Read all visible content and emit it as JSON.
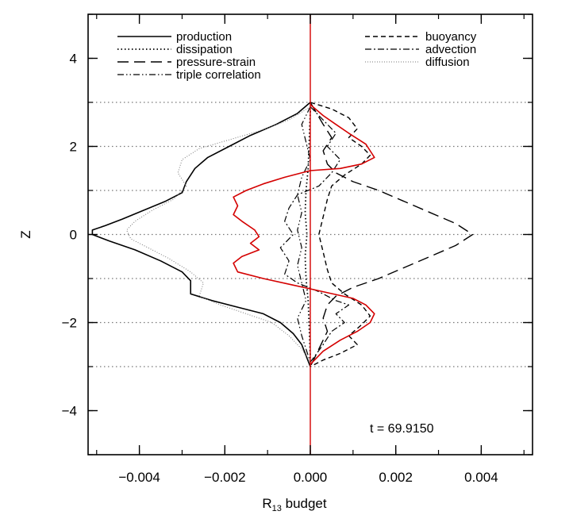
{
  "chart_data": {
    "type": "line",
    "title": "",
    "xlabel": "R",
    "xlabel_sub": "13",
    "xlabel_suffix": " budget",
    "ylabel": "Z",
    "xlim": [
      -0.0052,
      0.0052
    ],
    "ylim": [
      -5,
      5
    ],
    "x_ticks": [
      -0.004,
      -0.002,
      0.0,
      0.002,
      0.004
    ],
    "x_tick_labels": [
      "−0.004",
      "−0.002",
      "0.000",
      "0.002",
      "0.004"
    ],
    "y_ticks": [
      -4,
      -2,
      0,
      2,
      4
    ],
    "y_tick_labels": [
      "−4",
      "−2",
      "0",
      "2",
      "4"
    ],
    "grid_lines_y": [
      -3,
      -2,
      -1,
      0,
      1,
      2,
      3
    ],
    "annotation": "t = 69.9150",
    "legend_placement": "top",
    "colors": {
      "total": "#d40000",
      "lines": "#000000"
    },
    "series": [
      {
        "name": "production",
        "style": "solid",
        "points": [
          [
            0.0,
            3.0
          ],
          [
            -0.0003,
            2.75
          ],
          [
            -0.0008,
            2.5
          ],
          [
            -0.0014,
            2.25
          ],
          [
            -0.0019,
            2.0
          ],
          [
            -0.0024,
            1.75
          ],
          [
            -0.0027,
            1.5
          ],
          [
            -0.0029,
            1.2
          ],
          [
            -0.003,
            0.95
          ],
          [
            -0.0034,
            0.75
          ],
          [
            -0.0039,
            0.55
          ],
          [
            -0.0044,
            0.35
          ],
          [
            -0.0048,
            0.2
          ],
          [
            -0.0051,
            0.1
          ],
          [
            -0.0051,
            0.0
          ],
          [
            -0.0047,
            -0.15
          ],
          [
            -0.0041,
            -0.35
          ],
          [
            -0.0035,
            -0.6
          ],
          [
            -0.003,
            -0.85
          ],
          [
            -0.0028,
            -1.05
          ],
          [
            -0.0028,
            -1.35
          ],
          [
            -0.0023,
            -1.5
          ],
          [
            -0.0017,
            -1.65
          ],
          [
            -0.0011,
            -1.8
          ],
          [
            -0.0007,
            -2.0
          ],
          [
            -0.0004,
            -2.25
          ],
          [
            -0.0002,
            -2.5
          ],
          [
            -0.0001,
            -2.75
          ],
          [
            0.0,
            -3.0
          ]
        ]
      },
      {
        "name": "dissipation",
        "style": "dotted",
        "points": [
          [
            0.0,
            2.8
          ],
          [
            -5e-05,
            1.5
          ],
          [
            -0.0001,
            1.0
          ],
          [
            -0.00012,
            0.5
          ],
          [
            -8e-05,
            0.0
          ],
          [
            -0.00012,
            -0.5
          ],
          [
            -0.0001,
            -1.0
          ],
          [
            -5e-05,
            -1.5
          ],
          [
            0.0,
            -2.8
          ]
        ]
      },
      {
        "name": "pressure-strain",
        "style": "longdash",
        "points": [
          [
            0.0,
            3.0
          ],
          [
            0.0003,
            2.5
          ],
          [
            0.0005,
            2.2
          ],
          [
            0.0003,
            1.9
          ],
          [
            0.0004,
            1.6
          ],
          [
            0.0006,
            1.4
          ],
          [
            0.001,
            1.2
          ],
          [
            0.0016,
            1.0
          ],
          [
            0.0022,
            0.75
          ],
          [
            0.0028,
            0.5
          ],
          [
            0.0034,
            0.25
          ],
          [
            0.0038,
            0.0
          ],
          [
            0.0034,
            -0.25
          ],
          [
            0.0028,
            -0.5
          ],
          [
            0.0022,
            -0.75
          ],
          [
            0.0016,
            -1.0
          ],
          [
            0.001,
            -1.2
          ],
          [
            0.0006,
            -1.4
          ],
          [
            0.0004,
            -1.6
          ],
          [
            0.0003,
            -1.9
          ],
          [
            0.0004,
            -2.2
          ],
          [
            0.0002,
            -2.6
          ],
          [
            0.0,
            -3.0
          ]
        ]
      },
      {
        "name": "triple correlation",
        "style": "dashdotdot",
        "points": [
          [
            0.0,
            2.9
          ],
          [
            -0.0002,
            2.5
          ],
          [
            -0.0001,
            2.1
          ],
          [
            0.0,
            1.7
          ],
          [
            -0.0002,
            1.3
          ],
          [
            -0.0003,
            0.9
          ],
          [
            -0.0002,
            0.5
          ],
          [
            -0.0003,
            0.1
          ],
          [
            -0.0002,
            -0.3
          ],
          [
            -0.0003,
            -0.7
          ],
          [
            -0.0002,
            -1.1
          ],
          [
            -0.0001,
            -1.5
          ],
          [
            -0.0003,
            -1.9
          ],
          [
            -0.0002,
            -2.3
          ],
          [
            -0.0001,
            -2.6
          ],
          [
            0.0,
            -2.9
          ]
        ]
      },
      {
        "name": "buoyancy",
        "style": "shortdash",
        "points": [
          [
            0.0,
            3.0
          ],
          [
            0.0005,
            2.85
          ],
          [
            0.0009,
            2.65
          ],
          [
            0.0011,
            2.4
          ],
          [
            0.0009,
            2.2
          ],
          [
            0.0012,
            2.0
          ],
          [
            0.0014,
            1.8
          ],
          [
            0.0012,
            1.6
          ],
          [
            0.0008,
            1.35
          ],
          [
            0.0005,
            1.1
          ],
          [
            0.0004,
            0.8
          ],
          [
            0.0003,
            0.4
          ],
          [
            0.0002,
            0.0
          ],
          [
            0.0003,
            -0.4
          ],
          [
            0.0004,
            -0.8
          ],
          [
            0.0005,
            -1.1
          ],
          [
            0.0008,
            -1.35
          ],
          [
            0.0012,
            -1.6
          ],
          [
            0.0014,
            -1.85
          ],
          [
            0.0012,
            -2.05
          ],
          [
            0.0009,
            -2.3
          ],
          [
            0.0011,
            -2.5
          ],
          [
            0.0007,
            -2.7
          ],
          [
            0.0003,
            -2.85
          ],
          [
            0.0,
            -3.0
          ]
        ]
      },
      {
        "name": "advection",
        "style": "dashdot",
        "points": [
          [
            0.0,
            2.9
          ],
          [
            0.0003,
            2.6
          ],
          [
            0.0006,
            2.3
          ],
          [
            0.0004,
            2.0
          ],
          [
            0.0007,
            1.7
          ],
          [
            0.0005,
            1.4
          ],
          [
            0.0002,
            1.1
          ],
          [
            -0.0003,
            0.9
          ],
          [
            -0.0005,
            0.6
          ],
          [
            -0.0006,
            0.3
          ],
          [
            -0.0004,
            0.0
          ],
          [
            -0.0007,
            -0.3
          ],
          [
            -0.0005,
            -0.6
          ],
          [
            -0.0006,
            -0.9
          ],
          [
            -0.0003,
            -1.1
          ],
          [
            0.0002,
            -1.3
          ],
          [
            0.0006,
            -1.5
          ],
          [
            0.0009,
            -1.6
          ],
          [
            0.0006,
            -1.8
          ],
          [
            0.0008,
            -2.0
          ],
          [
            0.0005,
            -2.2
          ],
          [
            0.0003,
            -2.5
          ],
          [
            0.0,
            -2.9
          ]
        ]
      },
      {
        "name": "diffusion",
        "style": "fine-dot",
        "points": [
          [
            0.0,
            2.9
          ],
          [
            -0.0005,
            2.6
          ],
          [
            -0.0012,
            2.35
          ],
          [
            -0.0019,
            2.15
          ],
          [
            -0.0026,
            1.95
          ],
          [
            -0.003,
            1.7
          ],
          [
            -0.0031,
            1.4
          ],
          [
            -0.0029,
            1.1
          ],
          [
            -0.0032,
            0.8
          ],
          [
            -0.0037,
            0.55
          ],
          [
            -0.0041,
            0.3
          ],
          [
            -0.0043,
            0.1
          ],
          [
            -0.0042,
            -0.1
          ],
          [
            -0.0038,
            -0.3
          ],
          [
            -0.0033,
            -0.55
          ],
          [
            -0.0028,
            -0.85
          ],
          [
            -0.0025,
            -1.1
          ],
          [
            -0.0026,
            -1.4
          ],
          [
            -0.0021,
            -1.6
          ],
          [
            -0.0015,
            -1.8
          ],
          [
            -0.0009,
            -2.0
          ],
          [
            -0.0005,
            -2.3
          ],
          [
            -0.0002,
            -2.6
          ],
          [
            0.0,
            -2.9
          ]
        ]
      },
      {
        "name": "",
        "style": "solid-red",
        "points": [
          [
            0.0,
            2.95
          ],
          [
            0.0003,
            2.7
          ],
          [
            0.0006,
            2.5
          ],
          [
            0.0009,
            2.3
          ],
          [
            0.0013,
            2.05
          ],
          [
            0.0014,
            1.9
          ],
          [
            0.0015,
            1.75
          ],
          [
            0.0012,
            1.6
          ],
          [
            0.0007,
            1.5
          ],
          [
            0.0,
            1.45
          ],
          [
            -0.0006,
            1.3
          ],
          [
            -0.0011,
            1.15
          ],
          [
            -0.0015,
            1.0
          ],
          [
            -0.0018,
            0.85
          ],
          [
            -0.0017,
            0.65
          ],
          [
            -0.0018,
            0.45
          ],
          [
            -0.0016,
            0.3
          ],
          [
            -0.0013,
            0.1
          ],
          [
            -0.0012,
            -0.05
          ],
          [
            -0.0014,
            -0.2
          ],
          [
            -0.0012,
            -0.35
          ],
          [
            -0.0016,
            -0.5
          ],
          [
            -0.0018,
            -0.65
          ],
          [
            -0.0017,
            -0.85
          ],
          [
            -0.0011,
            -1.0
          ],
          [
            -0.0004,
            -1.15
          ],
          [
            0.0003,
            -1.3
          ],
          [
            0.001,
            -1.45
          ],
          [
            0.0013,
            -1.6
          ],
          [
            0.0015,
            -1.8
          ],
          [
            0.0014,
            -2.0
          ],
          [
            0.0011,
            -2.2
          ],
          [
            0.0007,
            -2.4
          ],
          [
            0.0003,
            -2.65
          ],
          [
            0.0,
            -2.95
          ]
        ]
      }
    ],
    "legend": {
      "left": [
        "production",
        "dissipation",
        "pressure-strain",
        "triple correlation"
      ],
      "right": [
        "buoyancy",
        "advection",
        "diffusion"
      ]
    }
  }
}
